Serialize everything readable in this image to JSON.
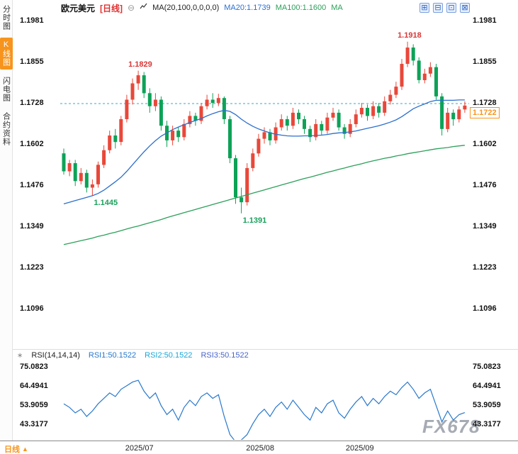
{
  "app": {
    "watermark": "FX678"
  },
  "sidebar": {
    "tabs": [
      {
        "label": "分时图",
        "active": false
      },
      {
        "label": "K线图",
        "active": true
      },
      {
        "label": "闪电图",
        "active": false
      },
      {
        "label": "合约资料",
        "active": false
      }
    ]
  },
  "header": {
    "symbol": "欧元美元",
    "period_tag": "[日线]",
    "collapse_icon": "⊖",
    "ma_settings": "MA(20,100,0,0,0,0)",
    "ma20_label": "MA20:1.1739",
    "ma100_label": "MA100:1.1600",
    "ma_extra": "MA",
    "toolbar": [
      {
        "name": "grid-layout-icon",
        "glyph": "⊞"
      },
      {
        "name": "split-panel-icon",
        "glyph": "⊟"
      },
      {
        "name": "indicator-panel-icon",
        "glyph": "⊡"
      },
      {
        "name": "fullscreen-icon",
        "glyph": "⊠"
      }
    ]
  },
  "rsi_header": {
    "icon": "∗",
    "title": "RSI(14,14,14)",
    "rsi1": "RSI1:50.1522",
    "rsi2": "RSI2:50.1522",
    "rsi3": "RSI3:50.1522"
  },
  "price_axis": {
    "last_price": "1.1722"
  },
  "bottom_bar": {
    "period_label": "日线",
    "arrow": "▲"
  },
  "chart_data": {
    "type": "candlestick",
    "symbol": "欧元美元 (EUR/USD)",
    "period": "日线",
    "y_ticks_main": [
      "1.1981",
      "1.1855",
      "1.1728",
      "1.1602",
      "1.1476",
      "1.1349",
      "1.1223",
      "1.1096"
    ],
    "y_ticks_rsi": [
      "75.0823",
      "64.4941",
      "53.9059",
      "43.3177"
    ],
    "x_ticks": [
      "2025/07",
      "2025/08",
      "2025/09"
    ],
    "dashed_line_price": 1.1728,
    "last_close": 1.1722,
    "ma20_current": 1.1739,
    "ma100_current": 1.16,
    "rsi_current": 50.1522,
    "annotations": [
      {
        "text": "1.1829",
        "index": 13,
        "price": 1.1829,
        "side": "above",
        "color": "#d93636"
      },
      {
        "text": "1.1918",
        "index": 60,
        "price": 1.1918,
        "side": "above",
        "color": "#d93636"
      },
      {
        "text": "1.1445",
        "index": 5,
        "price": 1.1445,
        "side": "below",
        "color": "#18a05a"
      },
      {
        "text": "1.1391",
        "index": 31,
        "price": 1.1391,
        "side": "below",
        "color": "#18a05a"
      }
    ],
    "colors": {
      "up": "#e8483a",
      "down": "#0da257",
      "ma20": "#2b6fce",
      "ma100": "#2ca05a",
      "rsi": "#2878cc",
      "dashed": "#2ab0c8",
      "accent_orange": "#f7941d"
    },
    "candles": [
      [
        1.1575,
        1.159,
        1.151,
        1.152
      ],
      [
        1.152,
        1.1555,
        1.1505,
        1.1545
      ],
      [
        1.1545,
        1.1555,
        1.1475,
        1.149
      ],
      [
        1.149,
        1.153,
        1.148,
        1.1515
      ],
      [
        1.1515,
        1.1525,
        1.1455,
        1.147
      ],
      [
        1.147,
        1.1495,
        1.1445,
        1.148
      ],
      [
        1.148,
        1.155,
        1.147,
        1.154
      ],
      [
        1.154,
        1.16,
        1.153,
        1.1585
      ],
      [
        1.1585,
        1.1645,
        1.1575,
        1.163
      ],
      [
        1.163,
        1.165,
        1.159,
        1.161
      ],
      [
        1.161,
        1.169,
        1.16,
        1.168
      ],
      [
        1.168,
        1.1755,
        1.167,
        1.174
      ],
      [
        1.174,
        1.1805,
        1.1725,
        1.179
      ],
      [
        1.179,
        1.1829,
        1.177,
        1.1815
      ],
      [
        1.1815,
        1.1825,
        1.1745,
        1.176
      ],
      [
        1.176,
        1.1775,
        1.17,
        1.172
      ],
      [
        1.172,
        1.176,
        1.1705,
        1.174
      ],
      [
        1.174,
        1.175,
        1.1645,
        1.166
      ],
      [
        1.166,
        1.1675,
        1.1595,
        1.1615
      ],
      [
        1.1615,
        1.166,
        1.16,
        1.1645
      ],
      [
        1.1645,
        1.1655,
        1.161,
        1.1625
      ],
      [
        1.1625,
        1.168,
        1.1615,
        1.1665
      ],
      [
        1.1665,
        1.1705,
        1.1655,
        1.169
      ],
      [
        1.169,
        1.17,
        1.166,
        1.1675
      ],
      [
        1.1675,
        1.173,
        1.1665,
        1.172
      ],
      [
        1.172,
        1.1755,
        1.171,
        1.174
      ],
      [
        1.174,
        1.176,
        1.1715,
        1.173
      ],
      [
        1.173,
        1.1758,
        1.172,
        1.1745
      ],
      [
        1.1745,
        1.175,
        1.1665,
        1.168
      ],
      [
        1.168,
        1.169,
        1.1545,
        1.156
      ],
      [
        1.156,
        1.157,
        1.142,
        1.144
      ],
      [
        1.144,
        1.147,
        1.1391,
        1.1425
      ],
      [
        1.1425,
        1.1545,
        1.1415,
        1.153
      ],
      [
        1.153,
        1.159,
        1.152,
        1.1575
      ],
      [
        1.1575,
        1.1635,
        1.1565,
        1.162
      ],
      [
        1.162,
        1.1655,
        1.1605,
        1.164
      ],
      [
        1.164,
        1.165,
        1.16,
        1.1615
      ],
      [
        1.1615,
        1.167,
        1.1605,
        1.1655
      ],
      [
        1.1655,
        1.1695,
        1.1645,
        1.168
      ],
      [
        1.168,
        1.169,
        1.1645,
        1.166
      ],
      [
        1.166,
        1.1715,
        1.165,
        1.17
      ],
      [
        1.17,
        1.171,
        1.1665,
        1.168
      ],
      [
        1.168,
        1.169,
        1.1635,
        1.165
      ],
      [
        1.165,
        1.166,
        1.161,
        1.1625
      ],
      [
        1.1625,
        1.168,
        1.1615,
        1.1665
      ],
      [
        1.1665,
        1.1675,
        1.163,
        1.1645
      ],
      [
        1.1645,
        1.17,
        1.1635,
        1.1685
      ],
      [
        1.1685,
        1.1715,
        1.1675,
        1.17
      ],
      [
        1.17,
        1.171,
        1.1645,
        1.1655
      ],
      [
        1.1655,
        1.1665,
        1.162,
        1.1635
      ],
      [
        1.1635,
        1.168,
        1.1625,
        1.1665
      ],
      [
        1.1665,
        1.171,
        1.1655,
        1.1695
      ],
      [
        1.1695,
        1.173,
        1.1685,
        1.1715
      ],
      [
        1.1715,
        1.1725,
        1.1675,
        1.169
      ],
      [
        1.169,
        1.1735,
        1.168,
        1.172
      ],
      [
        1.172,
        1.173,
        1.1685,
        1.17
      ],
      [
        1.17,
        1.175,
        1.169,
        1.1735
      ],
      [
        1.1735,
        1.177,
        1.1725,
        1.1755
      ],
      [
        1.1755,
        1.1795,
        1.1745,
        1.178
      ],
      [
        1.178,
        1.1865,
        1.177,
        1.185
      ],
      [
        1.185,
        1.1918,
        1.184,
        1.19
      ],
      [
        1.19,
        1.191,
        1.1845,
        1.186
      ],
      [
        1.186,
        1.187,
        1.179,
        1.18
      ],
      [
        1.18,
        1.1835,
        1.179,
        1.182
      ],
      [
        1.182,
        1.1855,
        1.181,
        1.184
      ],
      [
        1.184,
        1.185,
        1.174,
        1.175
      ],
      [
        1.175,
        1.176,
        1.163,
        1.165
      ],
      [
        1.165,
        1.1715,
        1.164,
        1.17
      ],
      [
        1.17,
        1.171,
        1.166,
        1.168
      ],
      [
        1.168,
        1.172,
        1.167,
        1.171
      ],
      [
        1.171,
        1.1735,
        1.17,
        1.1722
      ]
    ],
    "ma20": [
      1.142,
      1.1425,
      1.143,
      1.1435,
      1.144,
      1.1445,
      1.1452,
      1.1462,
      1.1475,
      1.1488,
      1.1502,
      1.152,
      1.154,
      1.156,
      1.158,
      1.1598,
      1.1614,
      1.1628,
      1.1638,
      1.1648,
      1.1656,
      1.1663,
      1.167,
      1.1676,
      1.1682,
      1.169,
      1.1697,
      1.1703,
      1.1707,
      1.1704,
      1.1694,
      1.168,
      1.1668,
      1.1658,
      1.165,
      1.1644,
      1.1638,
      1.1634,
      1.1631,
      1.1629,
      1.1628,
      1.1628,
      1.1629,
      1.1629,
      1.163,
      1.1631,
      1.1633,
      1.1636,
      1.1638,
      1.1639,
      1.1641,
      1.1644,
      1.1648,
      1.1652,
      1.1656,
      1.166,
      1.1665,
      1.1671,
      1.1678,
      1.1688,
      1.17,
      1.1712,
      1.172,
      1.1727,
      1.1734,
      1.1738,
      1.1738,
      1.1738,
      1.1738,
      1.1739,
      1.1739
    ],
    "ma100": [
      1.1295,
      1.1299,
      1.1303,
      1.1307,
      1.1311,
      1.1315,
      1.132,
      1.1324,
      1.1329,
      1.1333,
      1.1338,
      1.1343,
      1.1348,
      1.1352,
      1.1357,
      1.1362,
      1.1367,
      1.1372,
      1.1378,
      1.1383,
      1.1388,
      1.1393,
      1.1398,
      1.1403,
      1.1408,
      1.1413,
      1.1418,
      1.1423,
      1.1428,
      1.1433,
      1.1438,
      1.1443,
      1.1448,
      1.1453,
      1.1458,
      1.1463,
      1.1468,
      1.1473,
      1.1478,
      1.1483,
      1.1488,
      1.1493,
      1.1498,
      1.1502,
      1.1507,
      1.1512,
      1.1517,
      1.1521,
      1.1526,
      1.153,
      1.1535,
      1.1539,
      1.1543,
      1.1548,
      1.1552,
      1.1556,
      1.156,
      1.1563,
      1.1567,
      1.157,
      1.1574,
      1.1577,
      1.158,
      1.1583,
      1.1586,
      1.1589,
      1.1591,
      1.1593,
      1.1596,
      1.1598,
      1.16
    ],
    "rsi": [
      55,
      53,
      50,
      52,
      48,
      51,
      55,
      58,
      61,
      59,
      63,
      65,
      67,
      68,
      62,
      58,
      61,
      54,
      49,
      52,
      46,
      53,
      57,
      54,
      59,
      61,
      58,
      60,
      48,
      38,
      34,
      35,
      38,
      44,
      49,
      52,
      48,
      53,
      56,
      52,
      57,
      53,
      49,
      46,
      53,
      50,
      55,
      57,
      50,
      47,
      52,
      56,
      59,
      54,
      58,
      55,
      59,
      62,
      60,
      64,
      67,
      63,
      58,
      61,
      63,
      54,
      45,
      51,
      46,
      49,
      50.15
    ]
  }
}
